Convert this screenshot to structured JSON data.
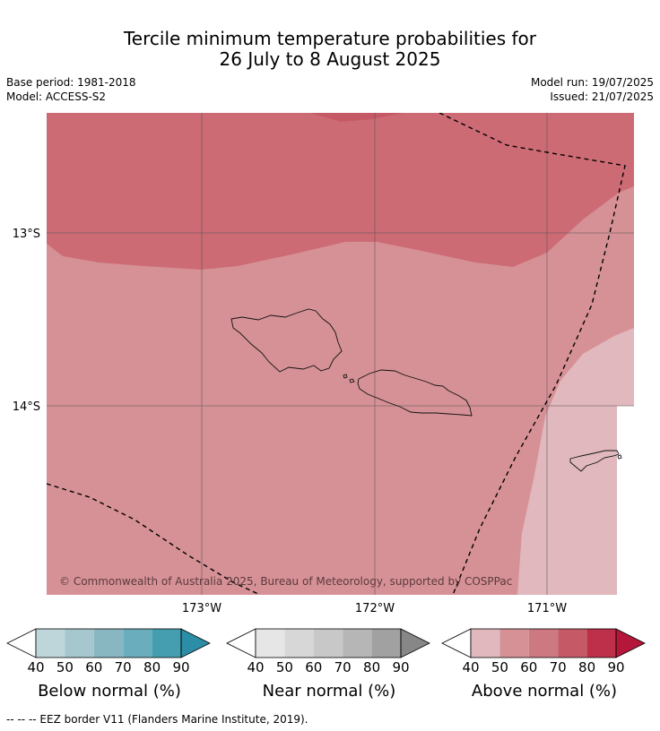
{
  "title": {
    "line1": "Tercile minimum temperature probabilities for",
    "line2": "26 July to 8 August 2025"
  },
  "meta": {
    "base_period": "Base period: 1981-2018",
    "model": "Model: ACCESS-S2",
    "model_run": "Model run: 19/07/2025",
    "issued": "Issued: 21/07/2025"
  },
  "map": {
    "lat_labels": [
      "13°S",
      "14°S"
    ],
    "lon_labels": [
      "173°W",
      "172°W",
      "171°W"
    ],
    "copyright": "© Commonwealth of Australia 2025, Bureau of Meteorology, supported by COSPPac"
  },
  "colorbars": [
    {
      "label": "Below normal (%)",
      "ticks": [
        "40",
        "50",
        "60",
        "70",
        "80",
        "90"
      ],
      "colors": [
        "#ffffff",
        "#bed5da",
        "#a5c7cd",
        "#88b7c2",
        "#6aadbd",
        "#459eb0",
        "#2b8ea6"
      ]
    },
    {
      "label": "Near normal (%)",
      "ticks": [
        "40",
        "50",
        "60",
        "70",
        "80",
        "90"
      ],
      "colors": [
        "#ffffff",
        "#e6e6e6",
        "#d7d7d7",
        "#c8c8c8",
        "#b6b6b6",
        "#a1a1a1",
        "#878787"
      ]
    },
    {
      "label": "Above normal (%)",
      "ticks": [
        "40",
        "50",
        "60",
        "70",
        "80",
        "90"
      ],
      "colors": [
        "#ffffff",
        "#e0b8bd",
        "#d69196",
        "#cd7982",
        "#c65966",
        "#be3049",
        "#b5173a"
      ]
    }
  ],
  "footer": "--  --  -- EEZ border V11 (Flanders Marine Institute, 2019)."
}
